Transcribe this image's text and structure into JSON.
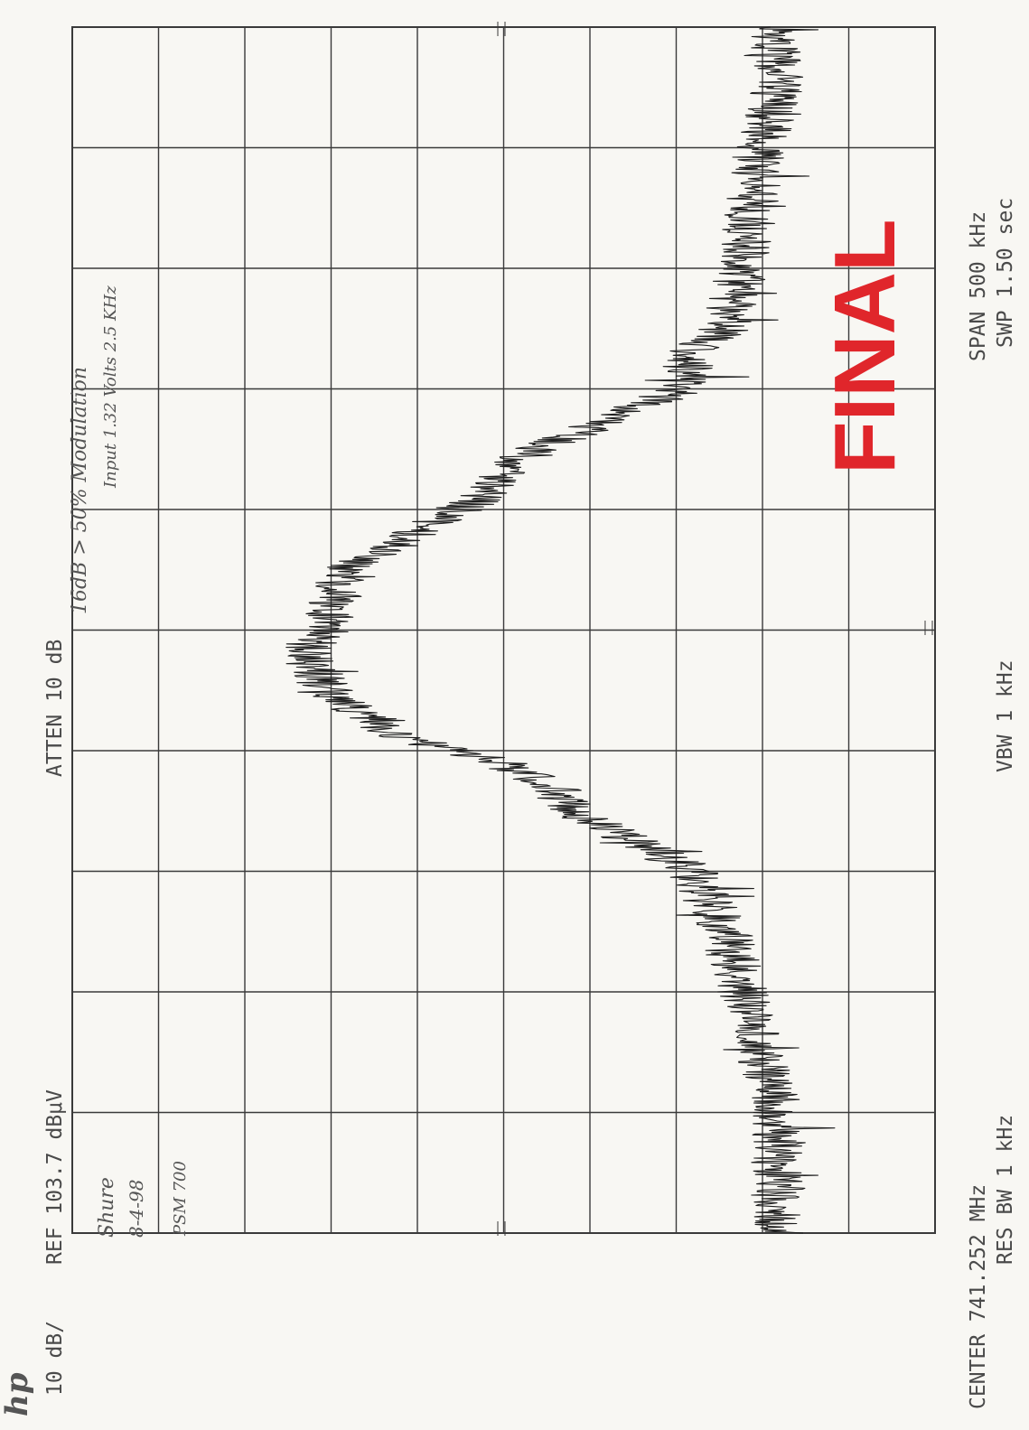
{
  "header": {
    "logo": "hp",
    "reference_level": "REF  103.7 dBμV",
    "attenuation": "ATTEN 10 dB",
    "scale": "10 dB/"
  },
  "footer": {
    "center_frequency": "CENTER 741.252 MHz",
    "span": "SPAN 500 kHz",
    "resolution_bandwidth": "RES BW 1 kHz",
    "video_bandwidth": "VBW 1 kHz",
    "sweep_time": "SWP 1.50  sec"
  },
  "annotations": {
    "note_device": "Shure",
    "note_date": "8-4-98",
    "note_model": "PSM 700",
    "note_modulation": "16dB > 50% Modulation",
    "note_input": "Input 1.32 Volts  2.5 KHz",
    "stamp_text": "FINAL"
  },
  "colors": {
    "paper": "#f8f7f3",
    "grid": "#3a3a3a",
    "trace": "#1e1e1e",
    "stamp": "#e0262b"
  },
  "chart_data": {
    "type": "line",
    "title": "",
    "xlabel": "",
    "ylabel": "",
    "x_unit": "kHz offset from center (741.252 MHz)",
    "y_unit": "dBμV",
    "xlim": [
      -250,
      250
    ],
    "ylim": [
      3.7,
      103.7
    ],
    "grid": true,
    "x_divisions": 10,
    "y_divisions": 10,
    "series": [
      {
        "name": "",
        "x": [
          -250,
          -225,
          -200,
          -175,
          -150,
          -125,
          -100,
          -85,
          -75,
          -65,
          -55,
          -45,
          -35,
          -25,
          -15,
          -5,
          5,
          15,
          25,
          35,
          45,
          55,
          65,
          75,
          85,
          100,
          115,
          125,
          150,
          175,
          200,
          225,
          250
        ],
        "y": [
          22,
          22,
          22,
          24,
          26,
          28,
          32,
          40,
          46,
          48,
          54,
          65,
          70,
          74,
          76,
          76,
          74,
          73,
          72,
          66,
          62,
          56,
          54,
          50,
          43,
          33,
          32,
          28,
          26,
          25,
          24,
          22,
          22
        ],
        "noise_amplitude_db": 3
      }
    ]
  }
}
